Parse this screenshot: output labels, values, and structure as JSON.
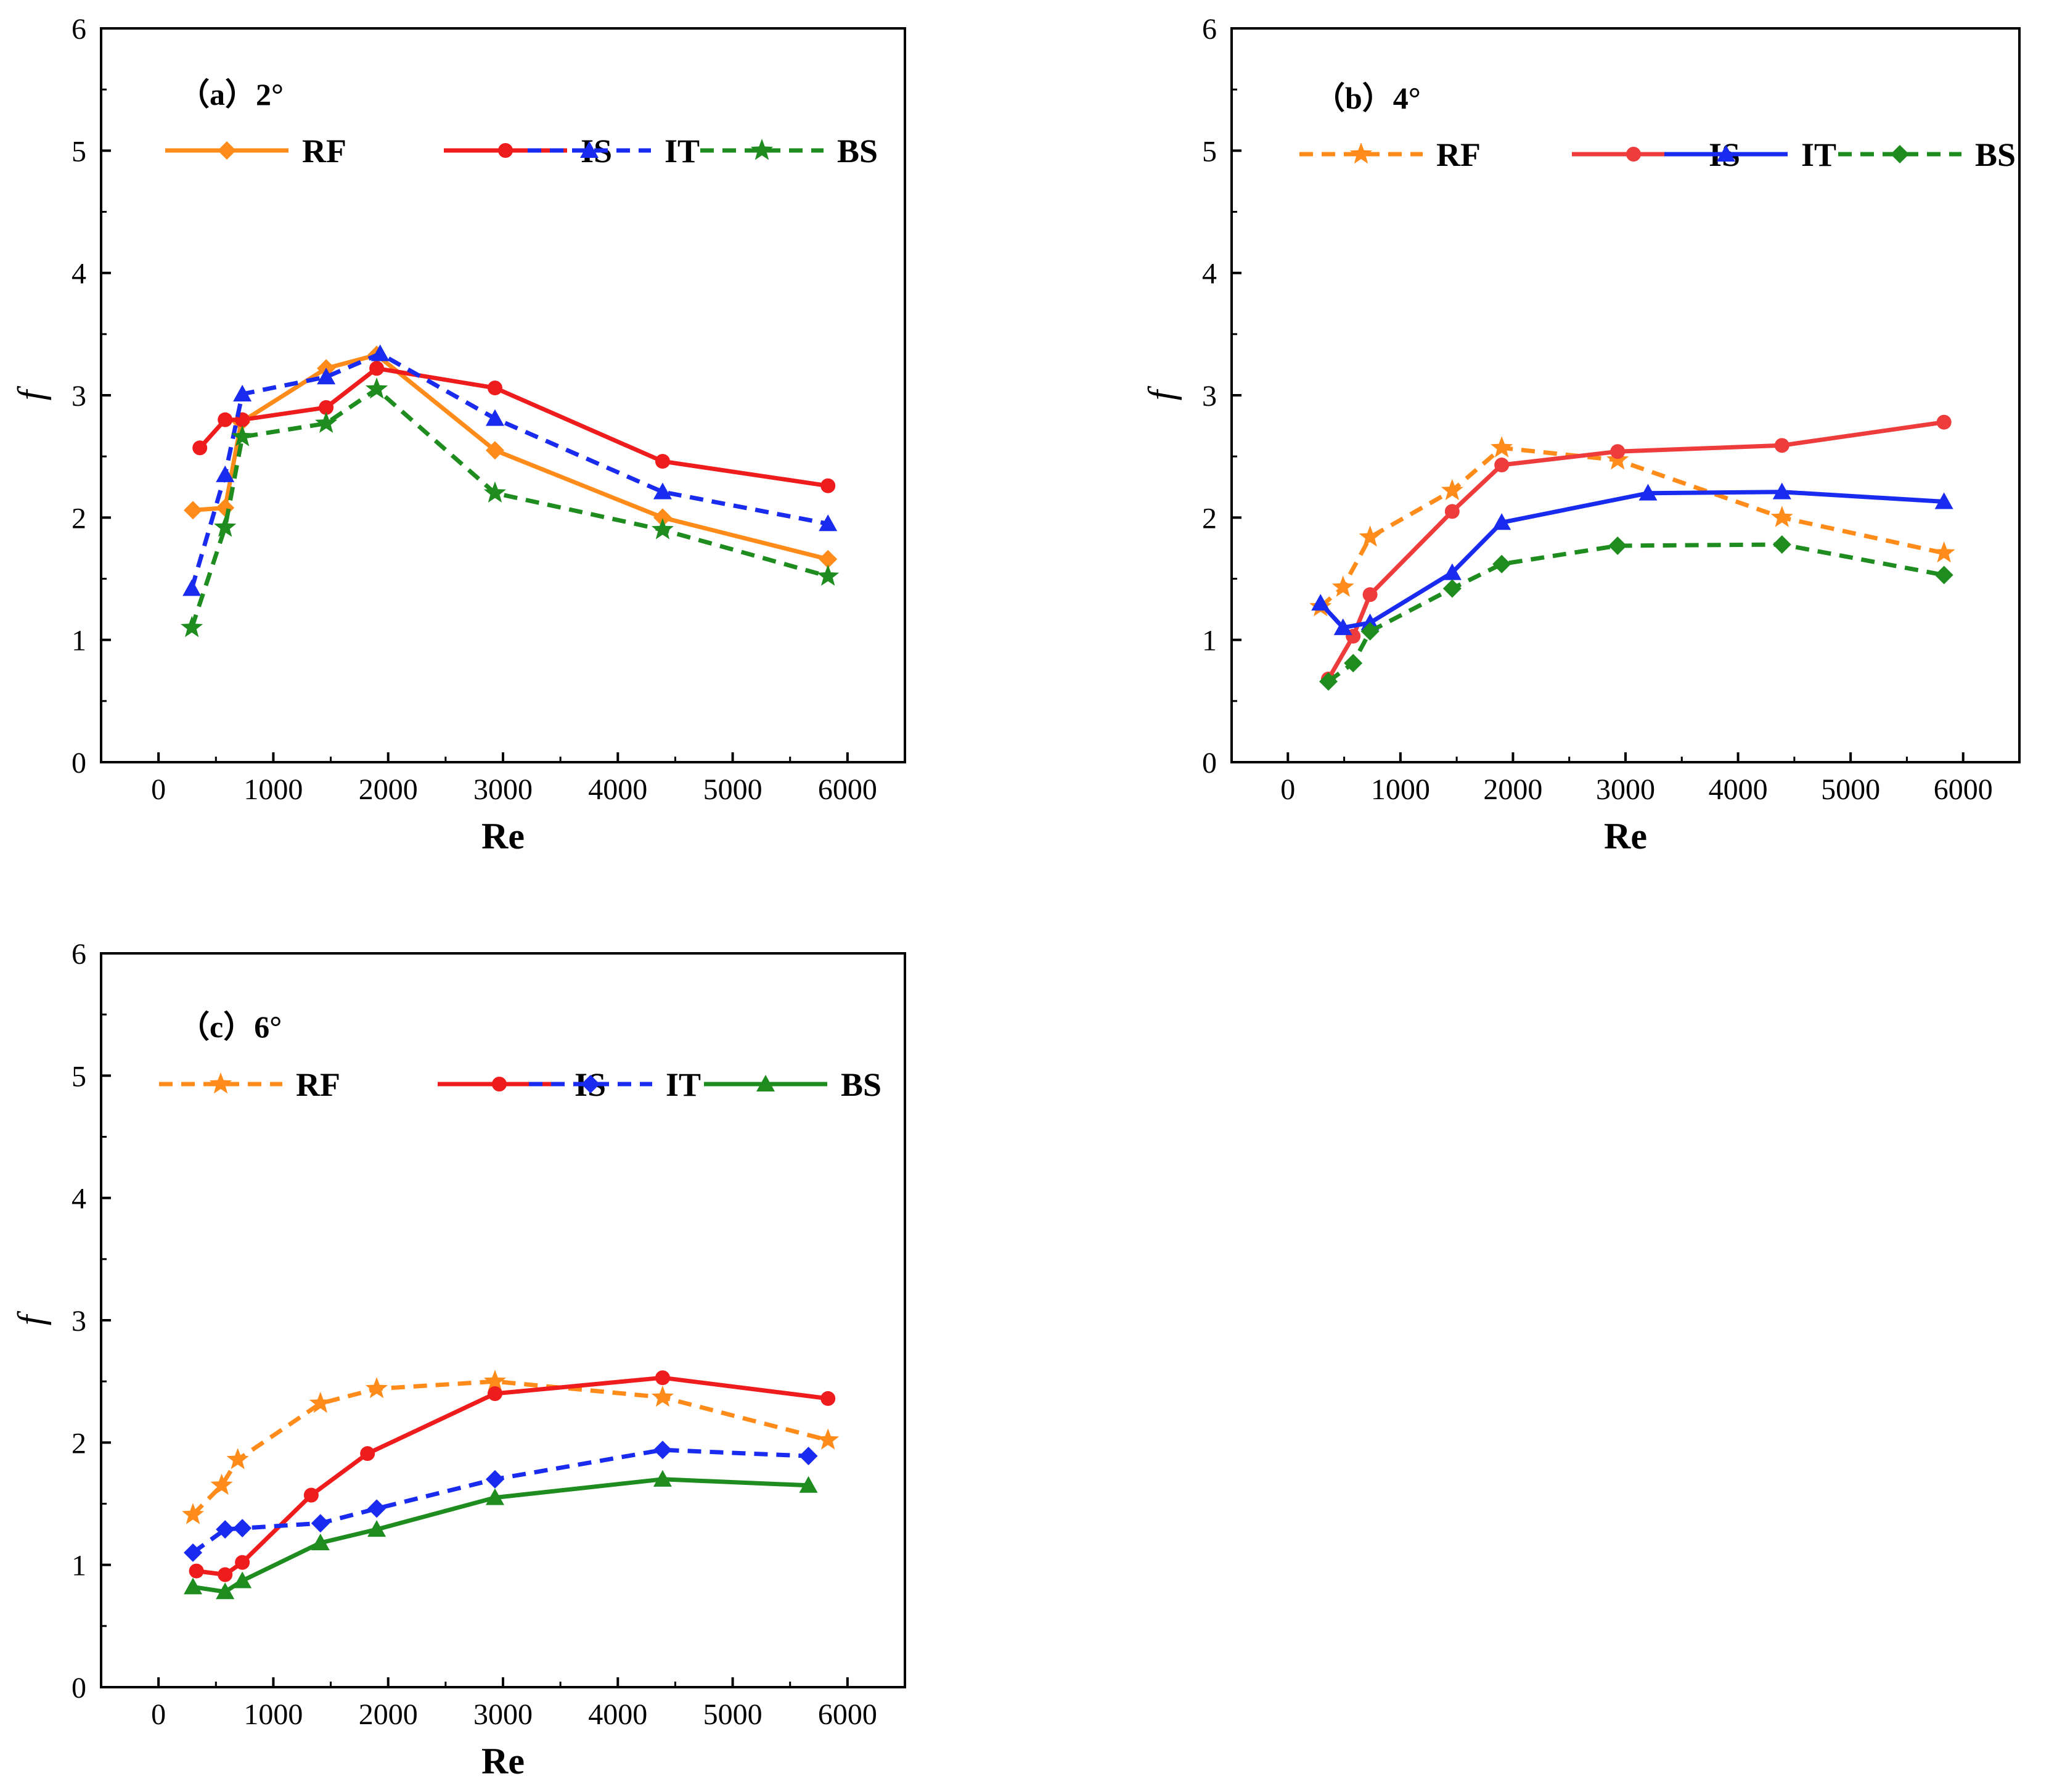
{
  "chart_data": [
    {
      "type": "line",
      "title": "（a）2°",
      "xlabel": "Re",
      "ylabel": "f",
      "xlim": [
        -500,
        6500
      ],
      "ylim": [
        0,
        6
      ],
      "xticks": [
        "0",
        "1000",
        "2000",
        "3000",
        "4000",
        "5000",
        "6000"
      ],
      "yticks": [
        "0",
        "1",
        "2",
        "3",
        "4",
        "5",
        "6"
      ],
      "legend_position": "top",
      "series": [
        {
          "name": "RF",
          "color": "#ff8c1a",
          "dash": "solid",
          "marker": "diamond",
          "x": [
            300,
            580,
            720,
            1460,
            1900,
            2930,
            4390,
            5830
          ],
          "y": [
            2.06,
            2.08,
            2.78,
            3.22,
            3.33,
            2.55,
            2.0,
            1.66
          ]
        },
        {
          "name": "IS",
          "color": "#ee1c1c",
          "dash": "solid",
          "marker": "circle",
          "x": [
            360,
            580,
            730,
            1460,
            1900,
            2930,
            4390,
            5830
          ],
          "y": [
            2.57,
            2.8,
            2.8,
            2.9,
            3.22,
            3.06,
            2.46,
            2.26
          ]
        },
        {
          "name": "IT",
          "color": "#1a2bf0",
          "dash": "dashed",
          "marker": "triangle",
          "x": [
            290,
            580,
            730,
            1460,
            1930,
            2930,
            4390,
            5830
          ],
          "y": [
            1.42,
            2.35,
            3.01,
            3.15,
            3.34,
            2.81,
            2.21,
            1.95
          ]
        },
        {
          "name": "BS",
          "color": "#1e8c1e",
          "dash": "dashed",
          "marker": "star",
          "x": [
            290,
            580,
            730,
            1460,
            1900,
            2930,
            4390,
            5830
          ],
          "y": [
            1.1,
            1.92,
            2.66,
            2.77,
            3.05,
            2.2,
            1.9,
            1.52
          ]
        }
      ]
    },
    {
      "type": "line",
      "title": "（b）4°",
      "xlabel": "Re",
      "ylabel": "f",
      "xlim": [
        -500,
        6500
      ],
      "ylim": [
        0,
        6
      ],
      "xticks": [
        "0",
        "1000",
        "2000",
        "3000",
        "4000",
        "5000",
        "6000"
      ],
      "yticks": [
        "0",
        "1",
        "2",
        "3",
        "4",
        "5",
        "6"
      ],
      "legend_position": "top",
      "series": [
        {
          "name": "RF",
          "color": "#ff8c1a",
          "dash": "dashed",
          "marker": "star",
          "x": [
            290,
            490,
            730,
            1460,
            1900,
            2930,
            4390,
            5830
          ],
          "y": [
            1.27,
            1.43,
            1.84,
            2.22,
            2.57,
            2.47,
            2.0,
            1.71
          ]
        },
        {
          "name": "IS",
          "color": "#ee3c3c",
          "dash": "solid",
          "marker": "circle",
          "x": [
            360,
            580,
            730,
            1460,
            1900,
            2930,
            4390,
            5830
          ],
          "y": [
            0.68,
            1.03,
            1.37,
            2.05,
            2.43,
            2.54,
            2.59,
            2.78
          ]
        },
        {
          "name": "IT",
          "color": "#1a2bf0",
          "dash": "solid",
          "marker": "triangle",
          "x": [
            290,
            490,
            730,
            1460,
            1900,
            3200,
            4390,
            5830
          ],
          "y": [
            1.3,
            1.1,
            1.14,
            1.55,
            1.96,
            2.2,
            2.21,
            2.13
          ]
        },
        {
          "name": "BS",
          "color": "#1e8c1e",
          "dash": "dashed",
          "marker": "diamond",
          "x": [
            360,
            580,
            730,
            1460,
            1900,
            2930,
            4390,
            5830
          ],
          "y": [
            0.66,
            0.81,
            1.07,
            1.42,
            1.62,
            1.77,
            1.78,
            1.53
          ]
        }
      ]
    },
    {
      "type": "line",
      "title": "（c）6°",
      "xlabel": "Re",
      "ylabel": "f",
      "xlim": [
        -500,
        6500
      ],
      "ylim": [
        0,
        6
      ],
      "xticks": [
        "0",
        "1000",
        "2000",
        "3000",
        "4000",
        "5000",
        "6000"
      ],
      "yticks": [
        "0",
        "1",
        "2",
        "3",
        "4",
        "5",
        "6"
      ],
      "legend_position": "top",
      "series": [
        {
          "name": "RF",
          "color": "#ff8c1a",
          "dash": "dashed",
          "marker": "star",
          "x": [
            300,
            550,
            690,
            1410,
            1900,
            2930,
            4390,
            5830
          ],
          "y": [
            1.41,
            1.65,
            1.86,
            2.32,
            2.44,
            2.5,
            2.37,
            2.02
          ]
        },
        {
          "name": "IS",
          "color": "#ee1c1c",
          "dash": "solid",
          "marker": "circle",
          "x": [
            330,
            580,
            730,
            1330,
            1820,
            2930,
            4390,
            5830
          ],
          "y": [
            0.95,
            0.92,
            1.02,
            1.57,
            1.91,
            2.4,
            2.53,
            2.36
          ]
        },
        {
          "name": "IT",
          "color": "#1a2bf0",
          "dash": "dashed",
          "marker": "diamond",
          "x": [
            300,
            580,
            730,
            1410,
            1900,
            2930,
            4390,
            5660
          ],
          "y": [
            1.1,
            1.29,
            1.3,
            1.34,
            1.46,
            1.7,
            1.94,
            1.89
          ]
        },
        {
          "name": "BS",
          "color": "#1e8c1e",
          "dash": "solid",
          "marker": "triangle",
          "x": [
            300,
            580,
            730,
            1410,
            1900,
            2930,
            4390,
            5660
          ],
          "y": [
            0.82,
            0.78,
            0.87,
            1.18,
            1.29,
            1.55,
            1.7,
            1.65
          ]
        }
      ]
    }
  ]
}
